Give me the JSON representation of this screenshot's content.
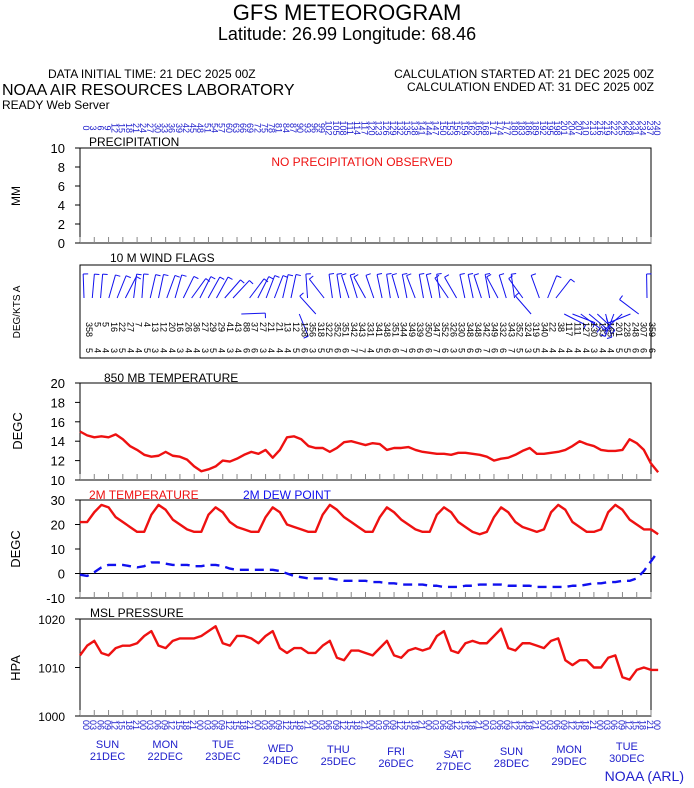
{
  "header": {
    "title": "GFS METEOROGRAM",
    "subtitle": "Latitude: 26.99 Longitude:  68.46",
    "data_initial_time": "DATA INITIAL TIME: 21 DEC 2025 00Z",
    "calc_started": "CALCULATION STARTED AT: 21 DEC 2025 00Z",
    "calc_ended": "CALCULATION ENDED AT: 31 DEC 2025 00Z",
    "organization": "NOAA AIR RESOURCES LABORATORY",
    "server": "READY Web Server",
    "credit": "NOAA (ARL)"
  },
  "colors": {
    "temp": "#ee1111",
    "dew": "#1111ee",
    "text_blue": "#2020cc",
    "grid_tick": "#888888"
  },
  "chart_data": [
    {
      "type": "line",
      "name": "precipitation",
      "title": "PRECIPITATION",
      "ylabel": "MM",
      "ylim": [
        0,
        10
      ],
      "yticks": [
        "0",
        "2",
        "4",
        "6",
        "8",
        "10"
      ],
      "note": "NO PRECIPITATION OBSERVED",
      "values": []
    },
    {
      "type": "line",
      "name": "wind",
      "title": "10 M  WIND FLAGS",
      "ylabel": "DEG/KTS  A",
      "directions": [
        "358",
        "5",
        "5",
        "16",
        "22",
        "27",
        "7",
        "4",
        "13",
        "12",
        "20",
        "16",
        "26",
        "36",
        "27",
        "29",
        "29",
        "41",
        "43",
        "88",
        "37",
        "27",
        "21",
        "21",
        "13",
        "12",
        "158",
        "356",
        "318",
        "322",
        "352",
        "351",
        "342",
        "343",
        "331",
        "341",
        "348",
        "351",
        "344",
        "349",
        "339",
        "350",
        "347",
        "352",
        "326",
        "330",
        "348",
        "348",
        "342",
        "349",
        "332",
        "343",
        "352",
        "324",
        "319",
        "340",
        "22",
        "38",
        "117",
        "111",
        "127",
        "130",
        "133",
        "165",
        "201",
        "228",
        "248",
        "307",
        "359"
      ],
      "speeds": [
        "5",
        "4",
        "4",
        "3",
        "5",
        "4",
        "4",
        "5",
        "3",
        "4",
        "4",
        "3",
        "4",
        "4",
        "3",
        "5",
        "4",
        "3",
        "4",
        "6",
        "6",
        "3",
        "4",
        "4",
        "4",
        "5",
        "6",
        "3",
        "5",
        "5",
        "6",
        "6",
        "7",
        "7",
        "4",
        "5",
        "6",
        "6",
        "7",
        "6",
        "6",
        "6",
        "7",
        "6",
        "3",
        "5",
        "6",
        "6",
        "7",
        "6",
        "6",
        "7",
        "5",
        "3",
        "5",
        "4",
        "4",
        "4",
        "4",
        "4",
        "4",
        "3",
        "4",
        "4",
        "5",
        "5",
        "6",
        "6",
        "6"
      ]
    },
    {
      "type": "line",
      "name": "temp850",
      "title": "850 MB  TEMPERATURE",
      "ylabel": "DEGC",
      "ylim": [
        10,
        20
      ],
      "yticks": [
        "10",
        "12",
        "14",
        "16",
        "18",
        "20"
      ],
      "values": [
        15.0,
        14.6,
        14.4,
        14.5,
        14.4,
        14.7,
        14.2,
        13.5,
        13.1,
        12.6,
        12.4,
        12.5,
        12.9,
        12.5,
        12.4,
        12.1,
        11.4,
        10.9,
        11.1,
        11.4,
        12.0,
        11.9,
        12.2,
        12.6,
        12.9,
        12.7,
        13.1,
        12.3,
        13.1,
        14.4,
        14.5,
        14.2,
        13.5,
        13.3,
        13.3,
        12.9,
        13.3,
        13.9,
        14.0,
        13.8,
        13.6,
        13.8,
        13.7,
        13.1,
        13.3,
        13.3,
        13.4,
        13.1,
        12.9,
        12.8,
        12.7,
        12.7,
        12.6,
        12.8,
        12.8,
        12.7,
        12.6,
        12.4,
        12.0,
        12.2,
        12.3,
        12.6,
        13.0,
        13.3,
        12.7,
        12.7,
        12.8,
        12.9,
        13.1,
        13.5,
        14.0,
        13.7,
        13.5,
        13.1,
        13.0,
        13.0,
        13.1,
        14.2,
        13.8,
        13.1,
        11.7,
        10.8
      ]
    },
    {
      "type": "line",
      "name": "surface",
      "ylabel": "DEGC",
      "ylim": [
        -10,
        30
      ],
      "yticks": [
        "-10",
        "0",
        "10",
        "20",
        "30"
      ],
      "series": [
        {
          "name": "2M TEMPERATURE",
          "values": [
            21,
            21,
            25,
            28,
            27,
            23,
            21,
            19,
            17,
            17,
            24,
            28,
            26,
            22,
            20,
            18,
            17,
            17,
            24,
            27,
            25,
            21,
            19,
            18,
            17,
            17,
            23,
            27,
            25,
            20,
            19,
            18,
            17,
            17,
            24,
            28,
            26,
            23,
            21,
            19,
            17,
            17,
            23,
            27,
            25,
            22,
            20,
            18,
            17,
            17,
            24,
            27,
            25,
            21,
            19,
            17,
            16,
            17,
            23,
            27,
            25,
            21,
            19,
            18,
            17,
            18,
            25,
            28,
            26,
            21,
            19,
            17,
            17,
            18,
            25,
            28,
            26,
            22,
            20,
            18,
            18,
            16
          ]
        },
        {
          "name": "2M  DEW POINT",
          "values": [
            -0.5,
            -1,
            0.5,
            2.5,
            3.5,
            3.5,
            3.5,
            3,
            2.5,
            3,
            4.5,
            4.5,
            4,
            3.5,
            3.5,
            3.5,
            3,
            3,
            3.5,
            3.5,
            3,
            2,
            1.5,
            1.5,
            1.5,
            1.5,
            1.5,
            1.5,
            1,
            0,
            -1,
            -1.5,
            -2,
            -2,
            -2,
            -2,
            -2.5,
            -3,
            -3,
            -3,
            -3,
            -3.5,
            -3.5,
            -4,
            -4,
            -4.5,
            -4.5,
            -4.5,
            -4.5,
            -5,
            -5,
            -5.5,
            -5.5,
            -5.5,
            -5,
            -5,
            -4.5,
            -4.5,
            -4.5,
            -4.5,
            -5,
            -5,
            -5,
            -5,
            -5.5,
            -5.5,
            -5.5,
            -5.5,
            -5.5,
            -5,
            -5,
            -4.5,
            -4,
            -4,
            -3.5,
            -3.5,
            -3,
            -3,
            -2,
            1,
            5,
            9
          ]
        }
      ]
    },
    {
      "type": "line",
      "name": "mslp",
      "title": "MSL PRESSURE",
      "ylabel": "HPA",
      "ylim": [
        1000,
        1020
      ],
      "yticks": [
        "1000",
        "1010",
        "1020"
      ],
      "values": [
        1012.5,
        1014.5,
        1015.5,
        1013,
        1012.5,
        1014,
        1014.5,
        1014.5,
        1015,
        1016.5,
        1017.5,
        1014.5,
        1014,
        1015.5,
        1016,
        1016,
        1016,
        1016.5,
        1017.5,
        1018.5,
        1015,
        1014.5,
        1016.5,
        1016.5,
        1016,
        1015,
        1016.5,
        1017.5,
        1014,
        1013,
        1014,
        1014,
        1013,
        1013,
        1014.5,
        1015.5,
        1012,
        1011.5,
        1013.5,
        1013.5,
        1013,
        1012.5,
        1014,
        1015.5,
        1012.5,
        1012,
        1013.5,
        1014,
        1013.5,
        1014,
        1016.5,
        1017.5,
        1013.5,
        1013,
        1015,
        1015.5,
        1015,
        1015,
        1016.5,
        1018,
        1014,
        1013.5,
        1015,
        1015,
        1014.5,
        1014,
        1015.5,
        1016,
        1011.5,
        1010.5,
        1011.5,
        1011.5,
        1010,
        1010,
        1012,
        1012.5,
        1008,
        1007.5,
        1009.5,
        1010,
        1009.5,
        1009.5
      ]
    }
  ],
  "time_axis": {
    "top_hours": [
      "0",
      "3",
      "6",
      "9",
      "12",
      "15",
      "18",
      "21",
      "24",
      "27",
      "30",
      "33",
      "36",
      "39",
      "42",
      "45",
      "48",
      "51",
      "54",
      "57",
      "60",
      "63",
      "66",
      "69",
      "72",
      "75",
      "78",
      "81",
      "84",
      "87",
      "90",
      "93",
      "96",
      "99",
      "102",
      "105",
      "108",
      "111",
      "114",
      "117",
      "120",
      "123",
      "126",
      "129",
      "132",
      "135",
      "138",
      "141",
      "144",
      "147",
      "150",
      "153",
      "156",
      "159",
      "162",
      "165",
      "168",
      "171",
      "174",
      "177",
      "180",
      "183",
      "186",
      "189",
      "192",
      "195",
      "198",
      "201",
      "204",
      "207",
      "210",
      "213",
      "216",
      "219",
      "222",
      "225",
      "228",
      "231",
      "234",
      "237",
      "240"
    ],
    "bottom_hours": [
      "00",
      "03",
      "06",
      "09",
      "12",
      "15",
      "18",
      "21",
      "00",
      "03",
      "06",
      "09",
      "12",
      "15",
      "18",
      "21",
      "00",
      "03",
      "06",
      "09",
      "12",
      "15",
      "18",
      "21",
      "00",
      "03",
      "06",
      "09",
      "12",
      "15",
      "18",
      "21",
      "00",
      "03",
      "06",
      "09",
      "12",
      "15",
      "18",
      "21",
      "00",
      "03",
      "06",
      "09",
      "12",
      "15",
      "18",
      "21",
      "00",
      "03",
      "06",
      "09",
      "12",
      "15",
      "18",
      "21",
      "00",
      "03",
      "06",
      "09",
      "12",
      "15",
      "18",
      "21",
      "00",
      "03",
      "06",
      "09",
      "12",
      "15",
      "18",
      "21",
      "00",
      "03",
      "06",
      "09",
      "12",
      "15",
      "18",
      "21",
      "00"
    ],
    "days": [
      {
        "dow": "SUN",
        "date": "21DEC"
      },
      {
        "dow": "MON",
        "date": "22DEC"
      },
      {
        "dow": "TUE",
        "date": "23DEC"
      },
      {
        "dow": "WED",
        "date": "24DEC"
      },
      {
        "dow": "THU",
        "date": "25DEC"
      },
      {
        "dow": "FRI",
        "date": "26DEC"
      },
      {
        "dow": "SAT",
        "date": "27DEC"
      },
      {
        "dow": "SUN",
        "date": "28DEC"
      },
      {
        "dow": "MON",
        "date": "29DEC"
      },
      {
        "dow": "TUE",
        "date": "30DEC"
      }
    ]
  }
}
